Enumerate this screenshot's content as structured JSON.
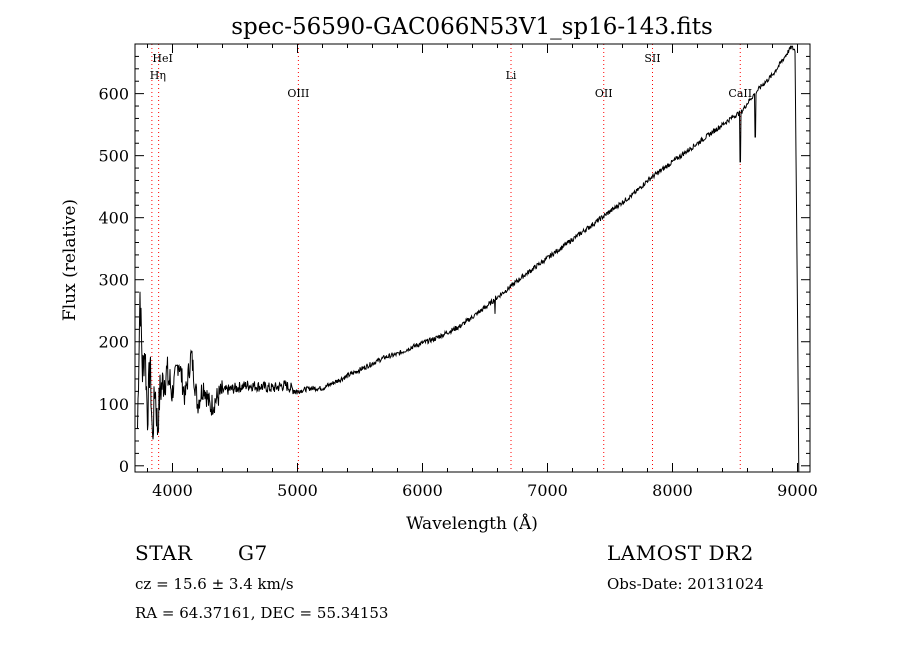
{
  "chart_data": {
    "type": "line",
    "title": "spec-56590-GAC066N53V1_sp16-143.fits",
    "xlabel": "Wavelength (Å)",
    "ylabel": "Flux (relative)",
    "xlim": [
      3700,
      9100
    ],
    "ylim": [
      -10,
      680
    ],
    "xticks": [
      4000,
      5000,
      6000,
      7000,
      8000,
      9000
    ],
    "yticks": [
      0,
      100,
      200,
      300,
      400,
      500,
      600
    ],
    "grid": false,
    "line_color": "#000000",
    "marker_color": "#ff0000",
    "series": [
      {
        "x": [
          3720,
          3740,
          3760,
          3780,
          3800,
          3820,
          3840,
          3860,
          3880,
          3900,
          3950,
          4000,
          4050,
          4100,
          4150,
          4200,
          4250,
          4300,
          4400,
          4500,
          4600,
          4700,
          4800,
          4900,
          5000,
          5100,
          5200,
          5300,
          5400,
          5500,
          5600,
          5700,
          5800,
          5900,
          6000,
          6100,
          6200,
          6300,
          6400,
          6500,
          6600,
          6700,
          6800,
          6900,
          7000,
          7100,
          7200,
          7300,
          7400,
          7500,
          7600,
          7700,
          7800,
          7900,
          8000,
          8100,
          8200,
          8300,
          8400,
          8500,
          8550,
          8600,
          8650,
          8700,
          8800,
          8900,
          8950,
          8980,
          9000
        ],
        "y": [
          60,
          280,
          150,
          190,
          80,
          170,
          40,
          130,
          60,
          120,
          150,
          120,
          170,
          110,
          180,
          100,
          130,
          95,
          120,
          125,
          130,
          128,
          125,
          130,
          120,
          125,
          125,
          135,
          145,
          155,
          165,
          175,
          180,
          190,
          198,
          205,
          215,
          225,
          240,
          255,
          272,
          288,
          305,
          320,
          335,
          350,
          365,
          380,
          395,
          410,
          425,
          440,
          460,
          475,
          490,
          505,
          520,
          535,
          550,
          565,
          570,
          585,
          598,
          610,
          630,
          660,
          675,
          670,
          250
        ]
      }
    ],
    "line_markers": [
      {
        "label": "HeI",
        "x": 3889
      },
      {
        "label": "Hη",
        "x": 3835
      },
      {
        "label": "OIII",
        "x": 5007
      },
      {
        "label": "Li",
        "x": 6708
      },
      {
        "label": "OII",
        "x": 7450
      },
      {
        "label": "SII",
        "x": 7840
      },
      {
        "label": "CaII",
        "x": 8542
      }
    ],
    "absorption_dips": [
      {
        "x": 6580,
        "y": 245
      },
      {
        "x": 8542,
        "y": 490
      },
      {
        "x": 8662,
        "y": 530
      }
    ]
  },
  "info": {
    "class_label": "STAR",
    "subclass_label": "G7",
    "cz": "cz = 15.6 ± 3.4 km/s",
    "coords": "RA =  64.37161, DEC =  55.34153",
    "survey": "LAMOST DR2",
    "obs_date": "Obs-Date: 20131024"
  }
}
